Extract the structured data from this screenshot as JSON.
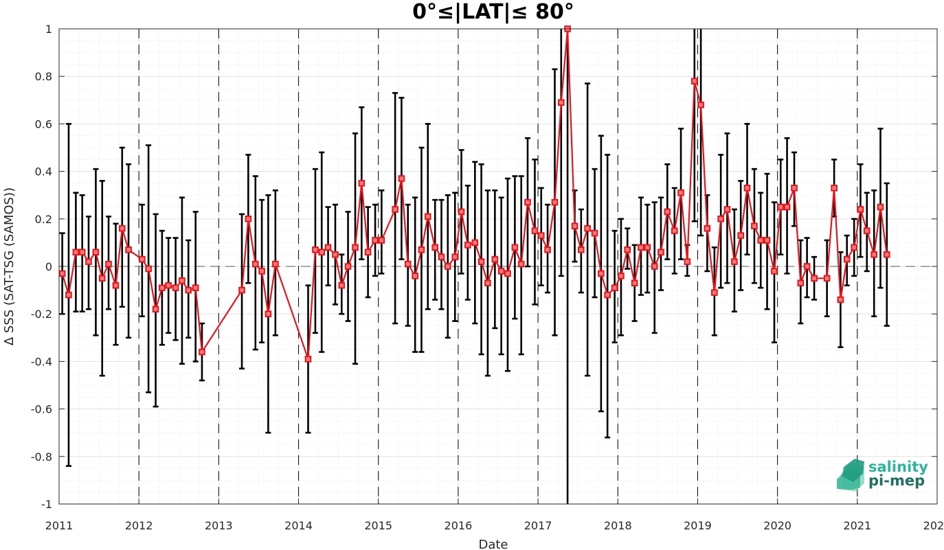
{
  "chart_data": {
    "type": "line",
    "title": "0°≤|LAT|≤ 80°",
    "xlabel": "Date",
    "ylabel": "Δ SSS (SAT-TSG (SAMOS))",
    "xlim": [
      2011,
      2022
    ],
    "ylim": [
      -1,
      1
    ],
    "x_ticks": [
      2011,
      2012,
      2013,
      2014,
      2015,
      2016,
      2017,
      2018,
      2019,
      2020,
      2021,
      2022
    ],
    "x_tick_labels": [
      "2011",
      "2012",
      "2013",
      "2014",
      "2015",
      "2016",
      "2017",
      "2018",
      "2019",
      "2020",
      "2021",
      "2022"
    ],
    "y_ticks": [
      -1,
      -0.8,
      -0.6,
      -0.4,
      -0.2,
      0,
      0.2,
      0.4,
      0.6,
      0.8,
      1
    ],
    "y_tick_labels": [
      "-1",
      "-0.8",
      "-0.6",
      "-0.4",
      "-0.2",
      "0",
      "0.2",
      "0.4",
      "0.6",
      "0.8",
      "1"
    ],
    "year_lines": [
      2012,
      2013,
      2014,
      2015,
      2016,
      2017,
      2018,
      2019,
      2020,
      2021
    ],
    "grid": true,
    "zero_line": true,
    "series": [
      {
        "color": "#e8141b",
        "marker": "square",
        "x": [
          2011.04,
          2011.12,
          2011.21,
          2011.29,
          2011.37,
          2011.46,
          2011.54,
          2011.62,
          2011.71,
          2011.79,
          2011.87,
          2012.04,
          2012.12,
          2012.21,
          2012.29,
          2012.37,
          2012.46,
          2012.54,
          2012.62,
          2012.71,
          2012.79,
          2013.29,
          2013.37,
          2013.46,
          2013.54,
          2013.62,
          2013.71,
          2014.12,
          2014.21,
          2014.29,
          2014.37,
          2014.46,
          2014.54,
          2014.62,
          2014.71,
          2014.79,
          2014.87,
          2014.96,
          2015.04,
          2015.21,
          2015.29,
          2015.37,
          2015.46,
          2015.54,
          2015.62,
          2015.71,
          2015.79,
          2015.87,
          2015.96,
          2016.04,
          2016.12,
          2016.21,
          2016.29,
          2016.37,
          2016.46,
          2016.54,
          2016.62,
          2016.71,
          2016.79,
          2016.87,
          2016.96,
          2017.04,
          2017.12,
          2017.21,
          2017.29,
          2017.37,
          2017.46,
          2017.54,
          2017.62,
          2017.71,
          2017.79,
          2017.87,
          2017.96,
          2018.04,
          2018.12,
          2018.21,
          2018.29,
          2018.37,
          2018.46,
          2018.54,
          2018.62,
          2018.71,
          2018.79,
          2018.87,
          2018.96,
          2019.04,
          2019.12,
          2019.21,
          2019.29,
          2019.37,
          2019.46,
          2019.54,
          2019.62,
          2019.71,
          2019.79,
          2019.87,
          2019.96,
          2020.04,
          2020.12,
          2020.21,
          2020.29,
          2020.37,
          2020.46,
          2020.62,
          2020.71,
          2020.79,
          2020.87,
          2020.96,
          2021.04,
          2021.12,
          2021.21,
          2021.29,
          2021.37
        ],
        "y": [
          -0.03,
          -0.12,
          0.06,
          0.06,
          0.02,
          0.06,
          -0.05,
          0.01,
          -0.08,
          0.16,
          0.07,
          0.03,
          -0.01,
          -0.18,
          -0.09,
          -0.08,
          -0.09,
          -0.06,
          -0.1,
          -0.09,
          -0.36,
          -0.1,
          0.2,
          0.01,
          -0.02,
          -0.2,
          0.01,
          -0.39,
          0.07,
          0.06,
          0.08,
          0.05,
          -0.08,
          0.0,
          0.08,
          0.35,
          0.06,
          0.11,
          0.11,
          0.24,
          0.37,
          0.01,
          -0.04,
          0.07,
          0.21,
          0.08,
          0.04,
          0.0,
          0.04,
          0.23,
          0.09,
          0.1,
          0.02,
          -0.07,
          0.03,
          -0.02,
          -0.03,
          0.08,
          0.01,
          0.27,
          0.15,
          0.13,
          0.07,
          0.27,
          0.69,
          1.02,
          0.17,
          0.07,
          0.16,
          0.14,
          -0.03,
          -0.12,
          -0.09,
          -0.04,
          0.07,
          -0.07,
          0.08,
          0.08,
          0.0,
          0.06,
          0.23,
          0.15,
          0.31,
          0.02,
          0.78,
          0.68,
          0.16,
          -0.11,
          0.2,
          0.24,
          0.02,
          0.13,
          0.33,
          0.17,
          0.11,
          0.11,
          -0.02,
          0.25,
          0.25,
          0.33,
          -0.07,
          0.0,
          -0.05,
          -0.05,
          0.33,
          -0.14,
          0.03,
          0.08,
          0.24,
          0.15,
          0.05,
          0.25,
          0.05
        ],
        "err_low": [
          -0.2,
          -0.84,
          -0.19,
          -0.19,
          -0.18,
          -0.29,
          -0.46,
          -0.18,
          -0.33,
          -0.17,
          -0.3,
          -0.21,
          -0.53,
          -0.59,
          -0.33,
          -0.28,
          -0.31,
          -0.41,
          -0.3,
          -0.4,
          -0.48,
          -0.43,
          -0.07,
          -0.35,
          -0.32,
          -0.7,
          -0.29,
          -0.7,
          -0.28,
          -0.36,
          -0.08,
          -0.16,
          -0.2,
          -0.23,
          -0.41,
          0.03,
          -0.13,
          -0.04,
          -0.03,
          -0.24,
          0.03,
          -0.25,
          -0.36,
          -0.36,
          -0.18,
          -0.14,
          -0.18,
          -0.3,
          -0.23,
          -0.03,
          -0.14,
          -0.24,
          -0.37,
          -0.46,
          -0.26,
          -0.37,
          -0.44,
          -0.22,
          -0.37,
          0.0,
          -0.16,
          -0.08,
          -0.11,
          -0.29,
          -0.04,
          -1.0,
          0.02,
          -0.11,
          -0.46,
          -0.13,
          -0.61,
          -0.72,
          -0.32,
          -0.29,
          -0.01,
          -0.23,
          -0.12,
          -0.11,
          -0.28,
          -0.1,
          0.03,
          -0.03,
          0.03,
          -0.04,
          0.19,
          0.13,
          -0.02,
          -0.29,
          -0.09,
          -0.07,
          -0.19,
          -0.1,
          0.05,
          -0.07,
          -0.09,
          -0.18,
          -0.32,
          0.05,
          -0.03,
          0.17,
          -0.24,
          -0.13,
          -0.14,
          -0.21,
          0.21,
          -0.34,
          -0.08,
          -0.04,
          0.04,
          -0.02,
          -0.21,
          -0.09,
          -0.25
        ],
        "err_high": [
          0.14,
          0.6,
          0.31,
          0.3,
          0.21,
          0.41,
          0.36,
          0.21,
          0.18,
          0.5,
          0.43,
          0.26,
          0.51,
          0.22,
          0.15,
          0.12,
          0.12,
          0.29,
          0.11,
          0.23,
          -0.24,
          0.22,
          0.47,
          0.38,
          0.28,
          0.3,
          0.32,
          -0.08,
          0.41,
          0.48,
          0.25,
          0.26,
          0.05,
          0.23,
          0.56,
          0.67,
          0.25,
          0.26,
          0.32,
          0.73,
          0.71,
          0.26,
          0.29,
          0.5,
          0.6,
          0.28,
          0.28,
          0.3,
          0.31,
          0.49,
          0.34,
          0.44,
          0.43,
          0.32,
          0.32,
          0.29,
          0.37,
          0.38,
          0.38,
          0.54,
          0.45,
          0.33,
          0.26,
          0.83,
          1.0,
          1.0,
          0.32,
          0.24,
          0.77,
          0.41,
          0.55,
          0.47,
          0.15,
          0.2,
          0.16,
          0.09,
          0.29,
          0.26,
          0.27,
          0.29,
          0.43,
          0.33,
          0.58,
          0.09,
          1.0,
          1.0,
          0.3,
          0.08,
          0.47,
          0.56,
          0.24,
          0.36,
          0.6,
          0.41,
          0.31,
          0.39,
          0.27,
          0.45,
          0.54,
          0.48,
          0.11,
          0.12,
          0.04,
          0.11,
          0.45,
          0.06,
          0.13,
          0.2,
          0.43,
          0.31,
          0.32,
          0.58,
          0.35
        ]
      }
    ]
  },
  "logo": {
    "line1": "salinity",
    "line2": "pi-mep"
  }
}
